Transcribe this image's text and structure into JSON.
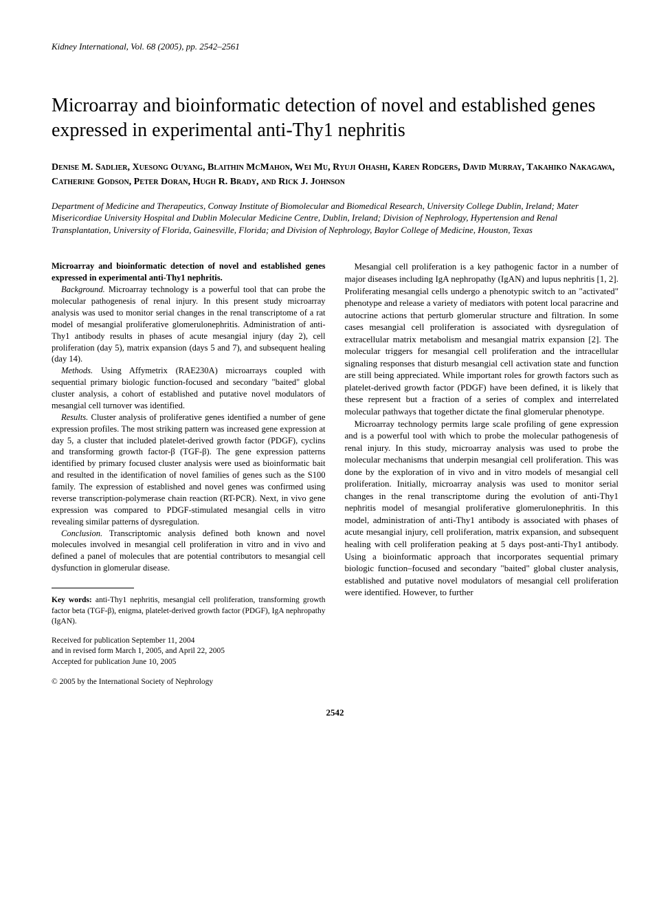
{
  "running_head": "Kidney International, Vol. 68 (2005), pp. 2542–2561",
  "title": "Microarray and bioinformatic detection of novel and established genes expressed in experimental anti-Thy1 nephritis",
  "authors": "Denise M. Sadlier, Xuesong Ouyang, Blaithin McMahon, Wei Mu, Ryuji Ohashi, Karen Rodgers, David Murray, Takahiko Nakagawa, Catherine Godson, Peter Doran, Hugh R. Brady, and Rick J. Johnson",
  "affiliations": "Department of Medicine and Therapeutics, Conway Institute of Biomolecular and Biomedical Research, University College Dublin, Ireland; Mater Misericordiae University Hospital and Dublin Molecular Medicine Centre, Dublin, Ireland; Division of Nephrology, Hypertension and Renal Transplantation, University of Florida, Gainesville, Florida; and Division of Nephrology, Baylor College of Medicine, Houston, Texas",
  "abstract": {
    "heading": "Microarray and bioinformatic detection of novel and established genes expressed in experimental anti-Thy1 nephritis.",
    "background_label": "Background.",
    "background": " Microarray technology is a powerful tool that can probe the molecular pathogenesis of renal injury. In this present study microarray analysis was used to monitor serial changes in the renal transcriptome of a rat model of mesangial proliferative glomerulonephritis. Administration of anti-Thy1 antibody results in phases of acute mesangial injury (day 2), cell proliferation (day 5), matrix expansion (days 5 and 7), and subsequent healing (day 14).",
    "methods_label": "Methods.",
    "methods": " Using Affymetrix (RAE230A) microarrays coupled with sequential primary biologic function-focused and secondary \"baited\" global cluster analysis, a cohort of established and putative novel modulators of mesangial cell turnover was identified.",
    "results_label": "Results.",
    "results": " Cluster analysis of proliferative genes identified a number of gene expression profiles. The most striking pattern was increased gene expression at day 5, a cluster that included platelet-derived growth factor (PDGF), cyclins and transforming growth factor-β (TGF-β). The gene expression patterns identified by primary focused cluster analysis were used as bioinformatic bait and resulted in the identification of novel families of genes such as the S100 family. The expression of established and novel genes was confirmed using reverse transcription-polymerase chain reaction (RT-PCR). Next, in vivo gene expression was compared to PDGF-stimulated mesangial cells in vitro revealing similar patterns of dysregulation.",
    "conclusion_label": "Conclusion.",
    "conclusion": " Transcriptomic analysis defined both known and novel molecules involved in mesangial cell proliferation in vitro and in vivo and defined a panel of molecules that are potential contributors to mesangial cell dysfunction in glomerular disease."
  },
  "keywords": {
    "label": "Key words:",
    "text": " anti-Thy1 nephritis, mesangial cell proliferation, transforming growth factor beta (TGF-β), enigma, platelet-derived growth factor (PDGF), IgA nephropathy (IgAN)."
  },
  "dates": {
    "received": "Received for publication September 11, 2004",
    "revised": "and in revised form March 1, 2005, and April 22, 2005",
    "accepted": "Accepted for publication June 10, 2005"
  },
  "copyright": "© 2005 by the International Society of Nephrology",
  "body": {
    "p1": "Mesangial cell proliferation is a key pathogenic factor in a number of major diseases including IgA nephropathy (IgAN) and lupus nephritis [1, 2]. Proliferating mesangial cells undergo a phenotypic switch to an \"activated\" phenotype and release a variety of mediators with potent local paracrine and autocrine actions that perturb glomerular structure and filtration. In some cases mesangial cell proliferation is associated with dysregulation of extracellular matrix metabolism and mesangial matrix expansion [2]. The molecular triggers for mesangial cell proliferation and the intracellular signaling responses that disturb mesangial cell activation state and function are still being appreciated. While important roles for growth factors such as platelet-derived growth factor (PDGF) have been defined, it is likely that these represent but a fraction of a series of complex and interrelated molecular pathways that together dictate the final glomerular phenotype.",
    "p2": "Microarray technology permits large scale profiling of gene expression and is a powerful tool with which to probe the molecular pathogenesis of renal injury. In this study, microarray analysis was used to probe the molecular mechanisms that underpin mesangial cell proliferation. This was done by the exploration of in vivo and in vitro models of mesangial cell proliferation. Initially, microarray analysis was used to monitor serial changes in the renal transcriptome during the evolution of anti-Thy1 nephritis model of mesangial proliferative glomerulonephritis. In this model, administration of anti-Thy1 antibody is associated with phases of acute mesangial injury, cell proliferation, matrix expansion, and subsequent healing with cell proliferation peaking at 5 days post-anti-Thy1 antibody. Using a bioinformatic approach that incorporates sequential primary biologic function–focused and secondary \"baited\" global cluster analysis, established and putative novel modulators of mesangial cell proliferation were identified. However, to further"
  },
  "page_number": "2542"
}
